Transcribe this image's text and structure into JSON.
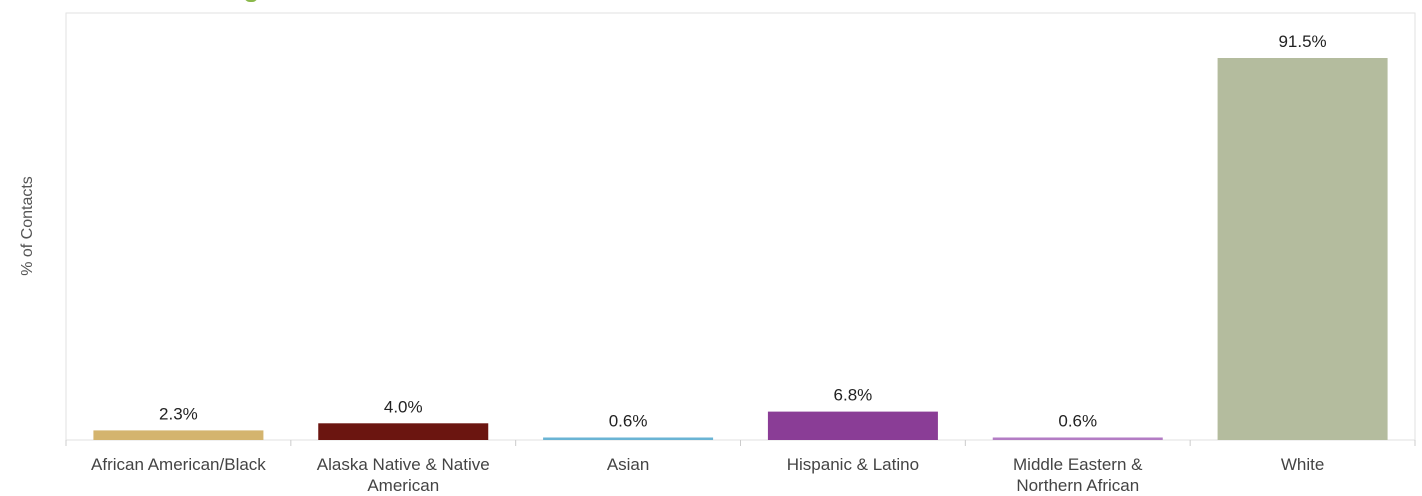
{
  "chart_data": {
    "type": "bar",
    "ylabel": "% of Contacts",
    "xlabel": "",
    "ylim": [
      0,
      100
    ],
    "grid": false,
    "categories": [
      [
        "African American/Black"
      ],
      [
        "Alaska Native & Native",
        "American"
      ],
      [
        "Asian"
      ],
      [
        "Hispanic & Latino"
      ],
      [
        "Middle Eastern &",
        "Northern African"
      ],
      [
        "White"
      ]
    ],
    "values": [
      2.3,
      4.0,
      0.6,
      6.8,
      0.6,
      91.5
    ],
    "labels": [
      "2.3%",
      "4.0%",
      "0.6%",
      "6.8%",
      "0.6%",
      "91.5%"
    ],
    "colors": [
      "#d4b46e",
      "#6b1510",
      "#6ab4d4",
      "#8a3d96",
      "#b37cc4",
      "#b4bc9e"
    ]
  }
}
